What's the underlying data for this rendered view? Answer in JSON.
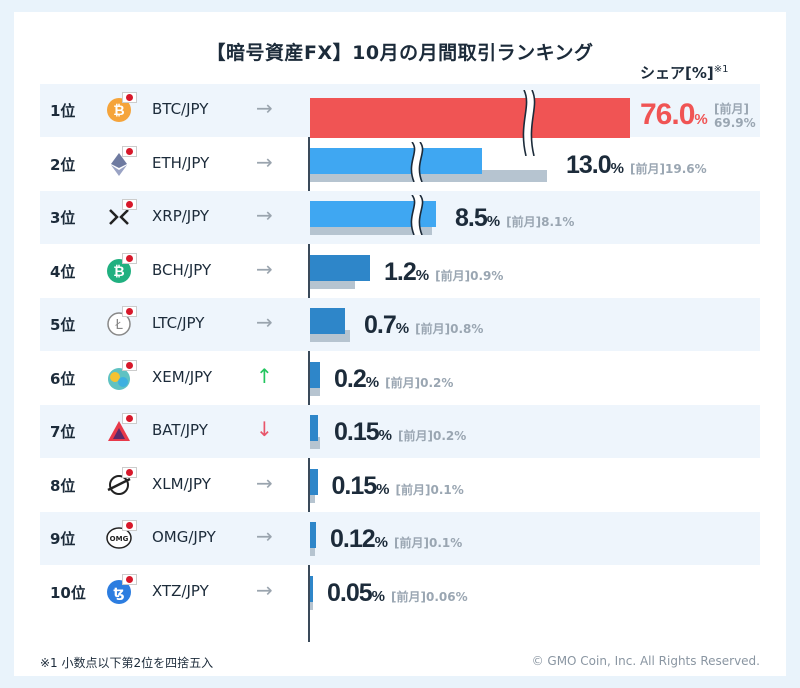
{
  "title": "【暗号資産FX】10月の月間取引ランキング",
  "share_label": "シェア[%]",
  "share_note": "※1",
  "prev_label": "[前月]",
  "footnote": "※1 小数点以下第2位を四捨五入",
  "copyright": "© GMO Coin, Inc. All Rights Reserved.",
  "colors": {
    "top": "#f05454",
    "bar": "#3fa7f2",
    "bar_dark": "#2e86c9",
    "prev": "#b6c4d0",
    "up": "#22c55e",
    "down": "#e8556a",
    "flat": "#9aa4ae"
  },
  "chart_data": {
    "type": "bar",
    "title": "【暗号資産FX】10月の月間取引ランキング",
    "ylabel": "シェア[%]",
    "series": [
      {
        "name": "10月",
        "values": [
          76.0,
          13.0,
          8.5,
          1.2,
          0.7,
          0.2,
          0.15,
          0.15,
          0.12,
          0.05
        ]
      },
      {
        "name": "前月",
        "values": [
          69.9,
          19.6,
          8.1,
          0.9,
          0.8,
          0.2,
          0.2,
          0.1,
          0.1,
          0.06
        ]
      }
    ],
    "rows": [
      {
        "rank": "1位",
        "pair": "BTC/JPY",
        "coin": "bitcoin-icon",
        "trend": "flat",
        "value": "76.0",
        "prev": "69.9%",
        "broken": true
      },
      {
        "rank": "2位",
        "pair": "ETH/JPY",
        "coin": "ethereum-icon",
        "trend": "flat",
        "value": "13.0",
        "prev": "19.6%",
        "broken": true
      },
      {
        "rank": "3位",
        "pair": "XRP/JPY",
        "coin": "xrp-icon",
        "trend": "flat",
        "value": "8.5",
        "prev": "8.1%",
        "broken": true
      },
      {
        "rank": "4位",
        "pair": "BCH/JPY",
        "coin": "bitcoin-cash-icon",
        "trend": "flat",
        "value": "1.2",
        "prev": "0.9%",
        "broken": false
      },
      {
        "rank": "5位",
        "pair": "LTC/JPY",
        "coin": "litecoin-icon",
        "trend": "flat",
        "value": "0.7",
        "prev": "0.8%",
        "broken": false
      },
      {
        "rank": "6位",
        "pair": "XEM/JPY",
        "coin": "nem-icon",
        "trend": "up",
        "value": "0.2",
        "prev": "0.2%",
        "broken": false
      },
      {
        "rank": "7位",
        "pair": "BAT/JPY",
        "coin": "bat-icon",
        "trend": "down",
        "value": "0.15",
        "prev": "0.2%",
        "broken": false
      },
      {
        "rank": "8位",
        "pair": "XLM/JPY",
        "coin": "stellar-icon",
        "trend": "flat",
        "value": "0.15",
        "prev": "0.1%",
        "broken": false
      },
      {
        "rank": "9位",
        "pair": "OMG/JPY",
        "coin": "omg-icon",
        "trend": "flat",
        "value": "0.12",
        "prev": "0.1%",
        "broken": false
      },
      {
        "rank": "10位",
        "pair": "XTZ/JPY",
        "coin": "tezos-icon",
        "trend": "flat",
        "value": "0.05",
        "prev": "0.06%",
        "broken": false
      }
    ]
  }
}
